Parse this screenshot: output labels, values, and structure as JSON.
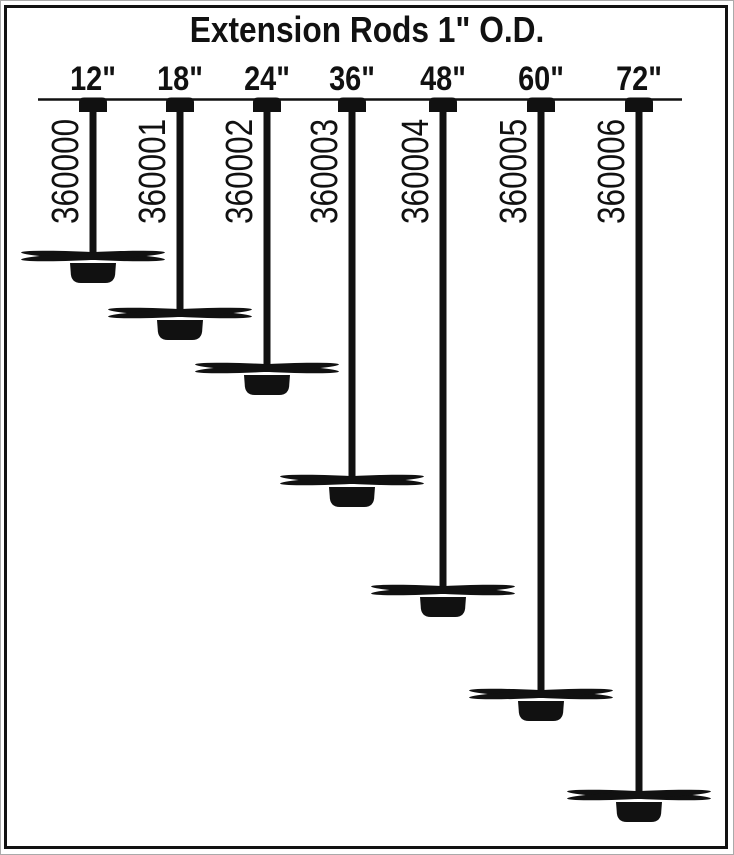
{
  "title": "Extension Rods 1\" O.D.",
  "rods": [
    {
      "size_label": "12\"",
      "part_number": "360000",
      "length_in": 12
    },
    {
      "size_label": "18\"",
      "part_number": "360001",
      "length_in": 18
    },
    {
      "size_label": "24\"",
      "part_number": "360002",
      "length_in": 24
    },
    {
      "size_label": "36\"",
      "part_number": "360003",
      "length_in": 36
    },
    {
      "size_label": "48\"",
      "part_number": "360004",
      "length_in": 48
    },
    {
      "size_label": "60\"",
      "part_number": "360005",
      "length_in": 60
    },
    {
      "size_label": "72\"",
      "part_number": "360006",
      "length_in": 72
    }
  ],
  "colors": {
    "ink": "#111111",
    "background": "#ffffff",
    "page_edge": "#aaaaaa"
  }
}
